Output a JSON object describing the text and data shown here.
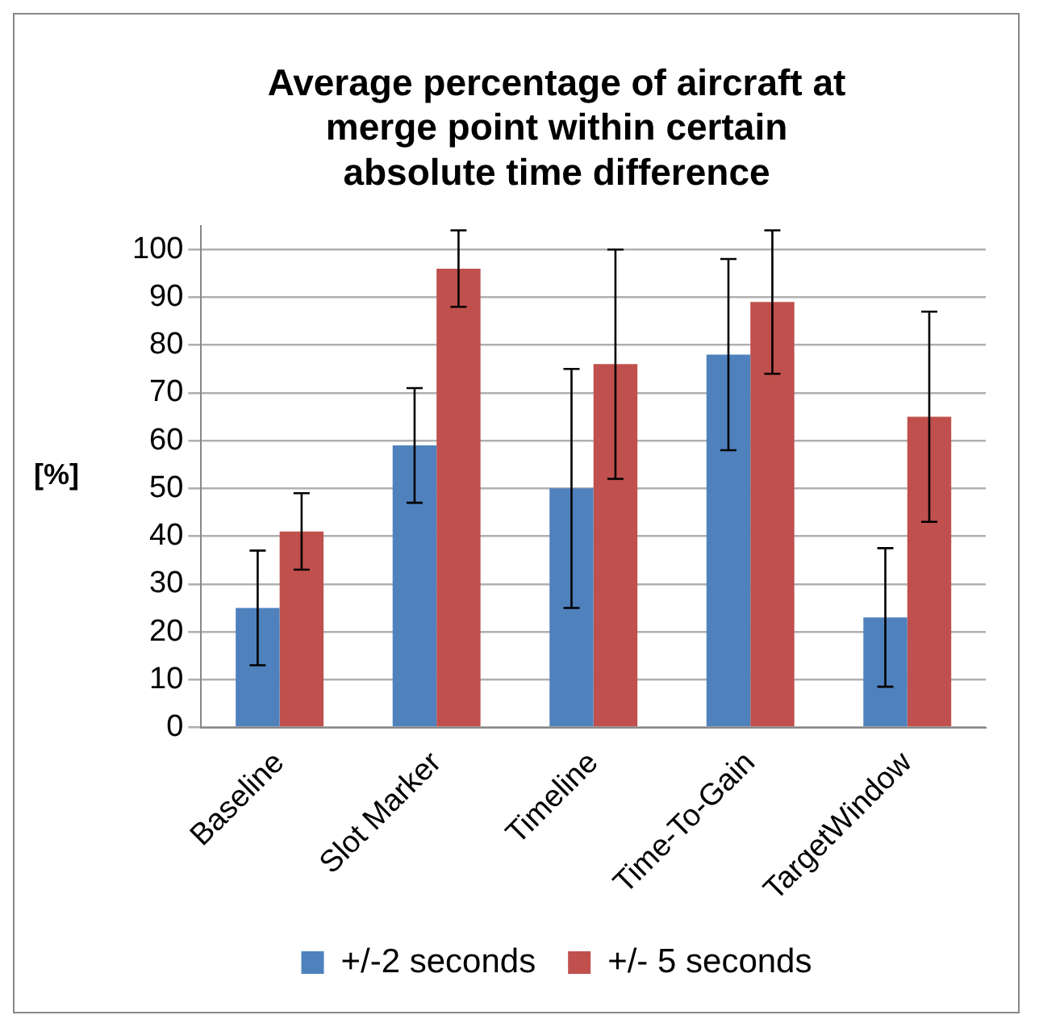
{
  "chart_data": {
    "type": "bar",
    "title": [
      "Average percentage of aircraft at",
      "merge point within certain",
      "absolute time difference"
    ],
    "ylabel": "[%]",
    "categories": [
      "Baseline",
      "Slot Marker",
      "Timeline",
      "Time-To-Gain",
      "TargetWindow"
    ],
    "series": [
      {
        "name": "+/-2 seconds",
        "color": "#4f81bd",
        "values": [
          25,
          59,
          50,
          78,
          23
        ],
        "errors": [
          12,
          12,
          25,
          20,
          14.5
        ]
      },
      {
        "name": "+/- 5 seconds",
        "color": "#c0504d",
        "values": [
          41,
          96,
          76,
          89,
          65
        ],
        "errors": [
          8,
          8,
          24,
          15,
          22
        ]
      }
    ],
    "ylim": [
      0,
      105
    ],
    "yticks": [
      0,
      10,
      20,
      30,
      40,
      50,
      60,
      70,
      80,
      90,
      100
    ],
    "grid": "y",
    "legend": "bottom"
  }
}
